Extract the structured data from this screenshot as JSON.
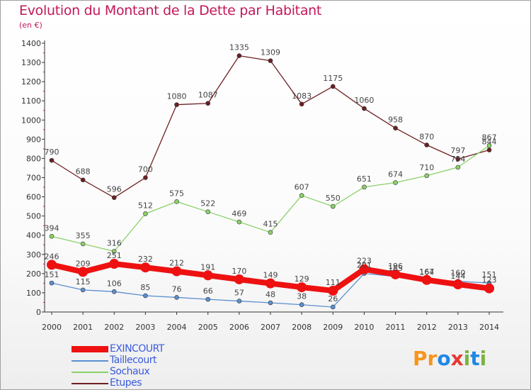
{
  "header": {
    "title": "Evolution du Montant de la Dette par Habitant",
    "unit": "(en €)"
  },
  "logo": {
    "text": "Proxiti",
    "letter_colors": [
      "#f7941d",
      "#f7941d",
      "#1e88e5",
      "#e53935",
      "#7cb342",
      "#1e88e5",
      "#7cb342"
    ]
  },
  "chart_data": {
    "type": "line",
    "title": "Evolution du Montant de la Dette par Habitant",
    "ylabel": "(en €)",
    "xlabel": "",
    "ylim": [
      0,
      1400
    ],
    "yticks": [
      0,
      100,
      200,
      300,
      400,
      500,
      600,
      700,
      800,
      900,
      1000,
      1100,
      1200,
      1300,
      1400
    ],
    "x": [
      "2000",
      "2001",
      "2002",
      "2003",
      "2004",
      "2005",
      "2006",
      "2007",
      "2008",
      "2009",
      "2010",
      "2011",
      "2012",
      "2013",
      "2014"
    ],
    "grid": false,
    "legend_position": "bottom-left",
    "series": [
      {
        "name": "Etupes",
        "color": "#6d1f23",
        "values": [
          790,
          688,
          596,
          700,
          1080,
          1087,
          1335,
          1309,
          1083,
          1175,
          1060,
          958,
          870,
          797,
          844
        ],
        "labels": [
          "790",
          "688",
          "596",
          "700",
          "1080",
          "1087",
          "1335",
          "1309",
          "1083",
          "1175",
          "1060",
          "958",
          "870",
          "797",
          "844"
        ]
      },
      {
        "name": "Sochaux",
        "color": "#8bd16a",
        "values": [
          394,
          355,
          316,
          512,
          575,
          522,
          469,
          415,
          607,
          550,
          651,
          674,
          710,
          754,
          867
        ],
        "labels": [
          "394",
          "355",
          "316",
          "512",
          "575",
          "522",
          "469",
          "415",
          "607",
          "550",
          "651",
          "674",
          "710",
          "754",
          "867"
        ]
      },
      {
        "name": "Taillecourt",
        "color": "#5b8fd0",
        "values": [
          151,
          115,
          106,
          85,
          76,
          66,
          57,
          48,
          38,
          26,
          201,
          185,
          164,
          160,
          151
        ],
        "labels": [
          "151",
          "115",
          "106",
          "85",
          "76",
          "66",
          "57",
          "48",
          "38",
          "26",
          "201",
          "185",
          "164",
          "160",
          "151"
        ]
      },
      {
        "name": "EXINCOURT",
        "color": "#ee1111",
        "values": [
          246,
          209,
          251,
          232,
          212,
          191,
          170,
          149,
          129,
          111,
          223,
          196,
          167,
          144,
          123
        ],
        "labels": [
          "246",
          "209",
          "251",
          "232",
          "212",
          "191",
          "170",
          "149",
          "129",
          "111",
          "223",
          "196",
          "167",
          "144",
          "123"
        ]
      }
    ]
  },
  "legend": {
    "items": [
      {
        "label": "EXINCOURT",
        "color": "#ee1111",
        "thick": true
      },
      {
        "label": "Taillecourt",
        "color": "#5b8fd0",
        "thick": false
      },
      {
        "label": "Sochaux",
        "color": "#8bd16a",
        "thick": false
      },
      {
        "label": "Etupes",
        "color": "#6d1f23",
        "thick": false
      }
    ]
  }
}
